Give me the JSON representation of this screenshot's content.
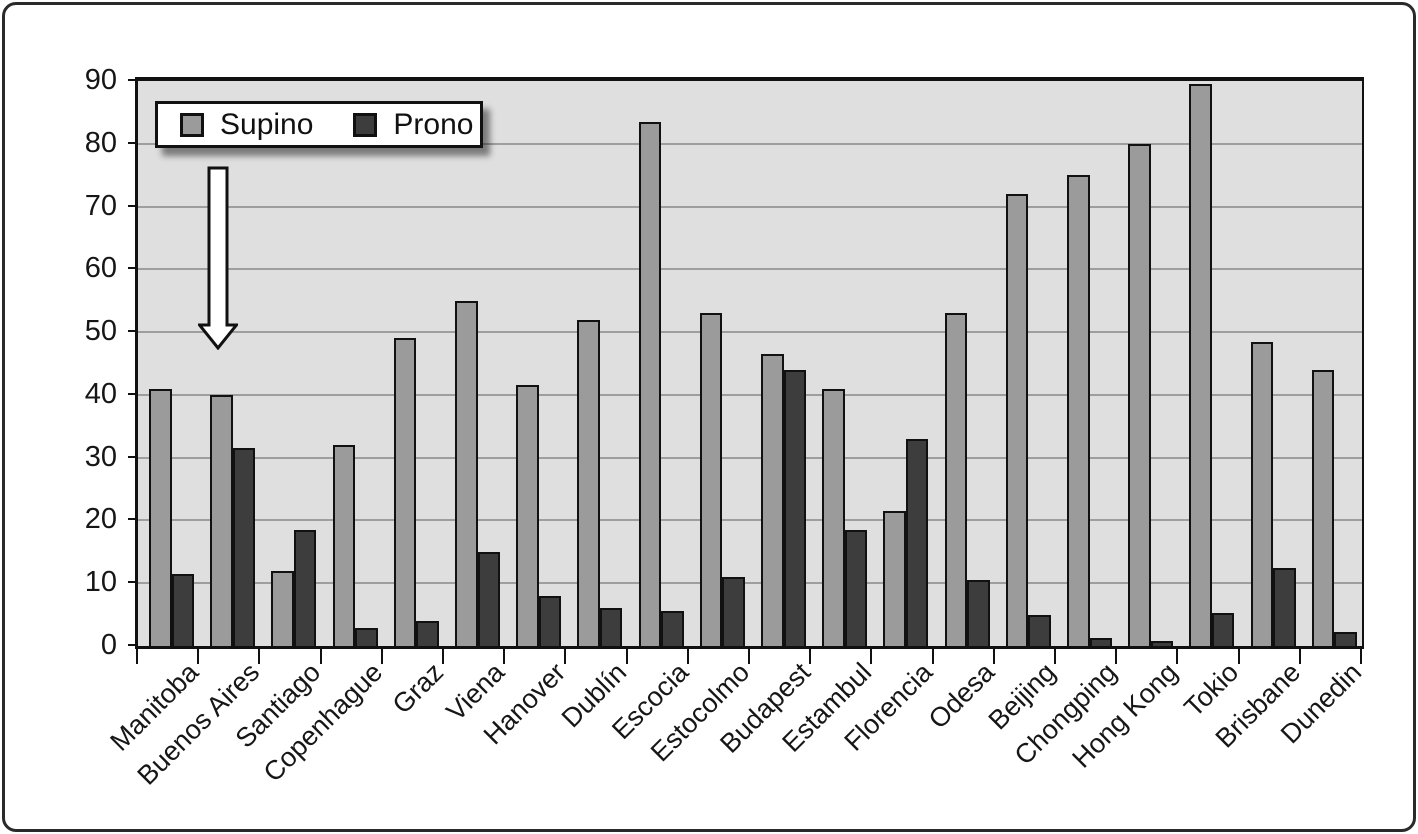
{
  "legend": {
    "items": [
      {
        "label": "Supino",
        "color": "#9b9b9b"
      },
      {
        "label": "Prono",
        "color": "#3d3d3d"
      }
    ]
  },
  "colors": {
    "plot_background": "#dfdfdf",
    "gridline": "#9e9e9e",
    "axis": "#111111",
    "supino_bar": "#9b9b9b",
    "prono_bar": "#3d3d3d",
    "arrow_fill": "#ffffff"
  },
  "chart_data": {
    "type": "bar",
    "title": "",
    "xlabel": "",
    "ylabel": "",
    "categories": [
      "Manitoba",
      "Buenos Aires",
      "Santiago",
      "Copenhague",
      "Graz",
      "Viena",
      "Hanover",
      "Dublín",
      "Escocia",
      "Estocolmo",
      "Budapest",
      "Estambul",
      "Florencia",
      "Odesa",
      "Beijing",
      "Chongping",
      "Hong Kong",
      "Tokio",
      "Brisbane",
      "Dunedin"
    ],
    "series": [
      {
        "name": "Supino",
        "color": "#9b9b9b",
        "values": [
          41,
          40,
          12,
          32,
          49,
          55,
          41.5,
          52,
          83.5,
          53,
          46.5,
          41,
          21.5,
          53,
          72,
          75,
          80,
          89.5,
          48.5,
          44
        ]
      },
      {
        "name": "Prono",
        "color": "#3d3d3d",
        "values": [
          11.5,
          31.5,
          18.5,
          2.8,
          4,
          15,
          8,
          6,
          5.5,
          11,
          44,
          18.5,
          33,
          10.5,
          5,
          1.3,
          0.8,
          5.3,
          12.5,
          2.3
        ]
      }
    ],
    "ylim": [
      0,
      90
    ],
    "yticks": [
      0,
      10,
      20,
      30,
      40,
      50,
      60,
      70,
      80,
      90
    ],
    "grid": true,
    "legend_position": "top-left",
    "annotations": [
      {
        "type": "down-arrow",
        "target_category": "Buenos Aires"
      }
    ]
  }
}
